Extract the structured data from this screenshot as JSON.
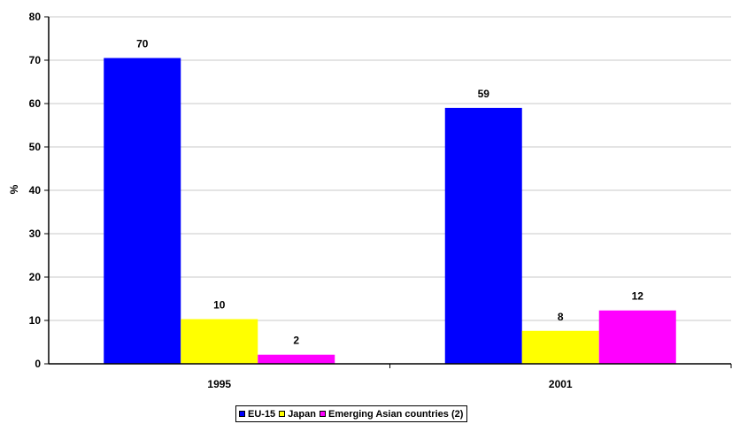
{
  "chart_data": {
    "type": "bar",
    "categories": [
      "1995",
      "2001"
    ],
    "series": [
      {
        "name": "EU-15",
        "values": [
          70.5,
          59
        ],
        "labels": [
          "70",
          "59"
        ],
        "color": "#0000ff"
      },
      {
        "name": "Japan",
        "values": [
          10.3,
          7.6
        ],
        "labels": [
          "10",
          "8"
        ],
        "color": "#ffff00"
      },
      {
        "name": "Emerging Asian countries (2)",
        "values": [
          2.1,
          12.3
        ],
        "labels": [
          "2",
          "12"
        ],
        "color": "#ff00ff"
      }
    ],
    "ylabel": "%",
    "ylim": [
      0,
      80
    ],
    "yticks": [
      "0",
      "10",
      "20",
      "30",
      "40",
      "50",
      "60",
      "70",
      "80"
    ],
    "grid": true,
    "legend_position": "bottom"
  }
}
